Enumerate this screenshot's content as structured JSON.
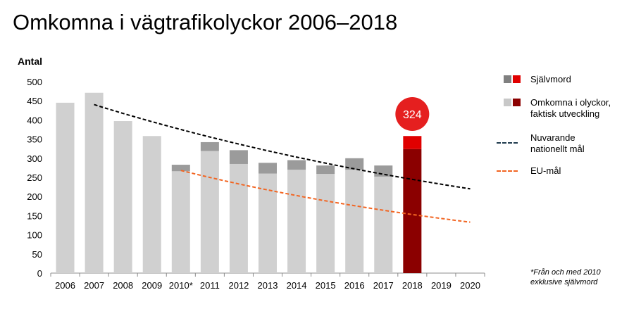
{
  "title": "Omkomna i vägtrafikolyckor 2006–2018",
  "chart_data": {
    "type": "bar",
    "ylabel": "Antal",
    "ylim": [
      0,
      500
    ],
    "yticks": [
      0,
      50,
      100,
      150,
      200,
      250,
      300,
      350,
      400,
      450,
      500
    ],
    "categories": [
      "2006",
      "2007",
      "2008",
      "2009",
      "2010*",
      "2011",
      "2012",
      "2013",
      "2014",
      "2015",
      "2016",
      "2017",
      "2018",
      "2019",
      "2020"
    ],
    "series": [
      {
        "name": "Omkomna i olyckor, faktisk utveckling",
        "values": [
          445,
          471,
          397,
          358,
          266,
          319,
          285,
          260,
          270,
          259,
          270,
          252,
          324,
          null,
          null
        ]
      },
      {
        "name": "Självmord",
        "values": [
          0,
          0,
          0,
          0,
          17,
          23,
          36,
          28,
          25,
          22,
          30,
          29,
          34,
          null,
          null
        ]
      }
    ],
    "lines": [
      {
        "name": "Nuvarande nationellt mål",
        "x": [
          "2007",
          "2020"
        ],
        "values": [
          440,
          220
        ],
        "style": "dashed"
      },
      {
        "name": "EU-mål",
        "x": [
          "2010*",
          "2020"
        ],
        "values": [
          268,
          133
        ],
        "style": "dashed"
      }
    ],
    "highlight": {
      "category": "2018",
      "label": "324"
    },
    "colors": {
      "bar": "#d0d0d0",
      "bar_suicide": "#9b9b9b",
      "bar_highlight": "#8b0000",
      "bar_highlight_suicide": "#e00000",
      "callout": "#e51f1f",
      "national_line": "#000000",
      "eu_line": "#f26522",
      "legend_national": "#1f3a4d"
    }
  },
  "legend": {
    "suicide": "Självmord",
    "accidents_line1": "Omkomna i olyckor,",
    "accidents_line2": "faktisk utveckling",
    "national_line1": "Nuvarande",
    "national_line2": "nationellt mål",
    "eu": "EU-mål"
  },
  "footnote": {
    "line1": "*Från och med 2010",
    "line2": "exklusive självmord"
  }
}
